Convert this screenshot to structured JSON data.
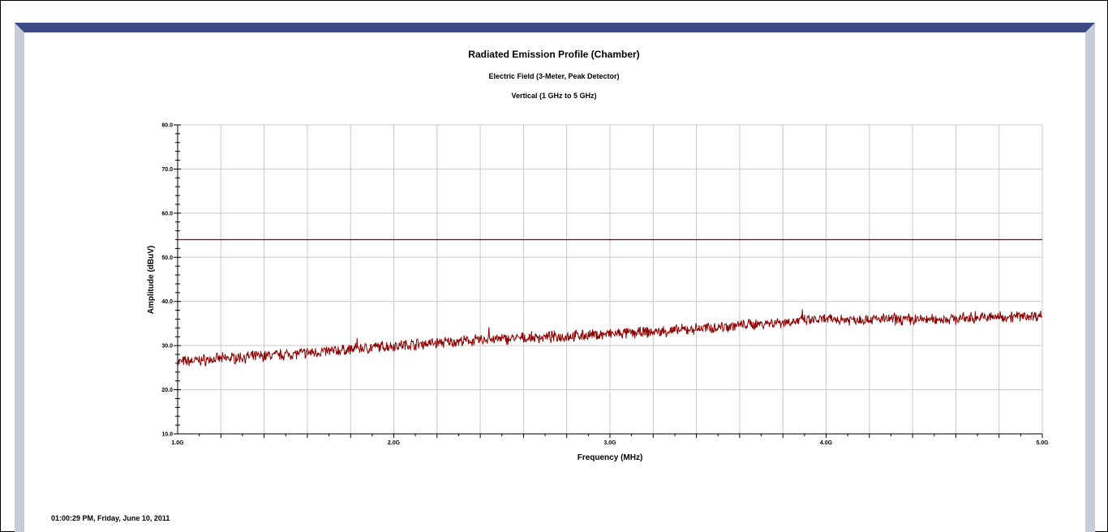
{
  "chart_data": {
    "type": "line",
    "title": "Radiated Emission Profile (Chamber)",
    "subtitle": "Electric Field (3-Meter, Peak Detector)",
    "subtitle2": "Vertical (1 GHz to 5 GHz)",
    "xlabel": "Frequency (MHz)",
    "ylabel": "Amplitude (dBuV)",
    "xlim": [
      1000,
      5000
    ],
    "ylim": [
      10,
      80
    ],
    "x_ticks": [
      {
        "value": 1000,
        "label": "1.0G"
      },
      {
        "value": 2000,
        "label": "2.0G"
      },
      {
        "value": 3000,
        "label": "3.0G"
      },
      {
        "value": 4000,
        "label": "4.0G"
      },
      {
        "value": 5000,
        "label": "5.0G"
      }
    ],
    "y_ticks": [
      {
        "value": 10,
        "label": "10.0"
      },
      {
        "value": 20,
        "label": "20.0"
      },
      {
        "value": 30,
        "label": "30.0"
      },
      {
        "value": 40,
        "label": "40.0"
      },
      {
        "value": 50,
        "label": "50.0"
      },
      {
        "value": 60,
        "label": "60.0"
      },
      {
        "value": 70,
        "label": "70.0"
      },
      {
        "value": 80,
        "label": "80.0"
      }
    ],
    "grid": true,
    "series": [
      {
        "color": "#8b0000",
        "style": "line",
        "x": [
          1000,
          5000
        ],
        "y": [
          54,
          54
        ]
      },
      {
        "color": "#8b0000",
        "style": "noisy",
        "x": [
          1000,
          1250,
          1500,
          1750,
          2000,
          2250,
          2500,
          2750,
          3000,
          3250,
          3500,
          3750,
          4000,
          4250,
          4500,
          4750,
          5000
        ],
        "y": [
          26.3,
          27.2,
          28.0,
          28.9,
          30.0,
          30.8,
          31.5,
          32.0,
          32.6,
          33.2,
          34.2,
          35.2,
          35.9,
          36.0,
          35.9,
          36.4,
          36.8
        ]
      }
    ],
    "peaks": [
      {
        "x": 1830,
        "y": 31.7
      },
      {
        "x": 2440,
        "y": 34.2
      },
      {
        "x": 3890,
        "y": 38.2
      },
      {
        "x": 4690,
        "y": 37.8
      }
    ]
  },
  "footer": {
    "timestamp": "01:00:29 PM, Friday, June 10, 2011"
  }
}
